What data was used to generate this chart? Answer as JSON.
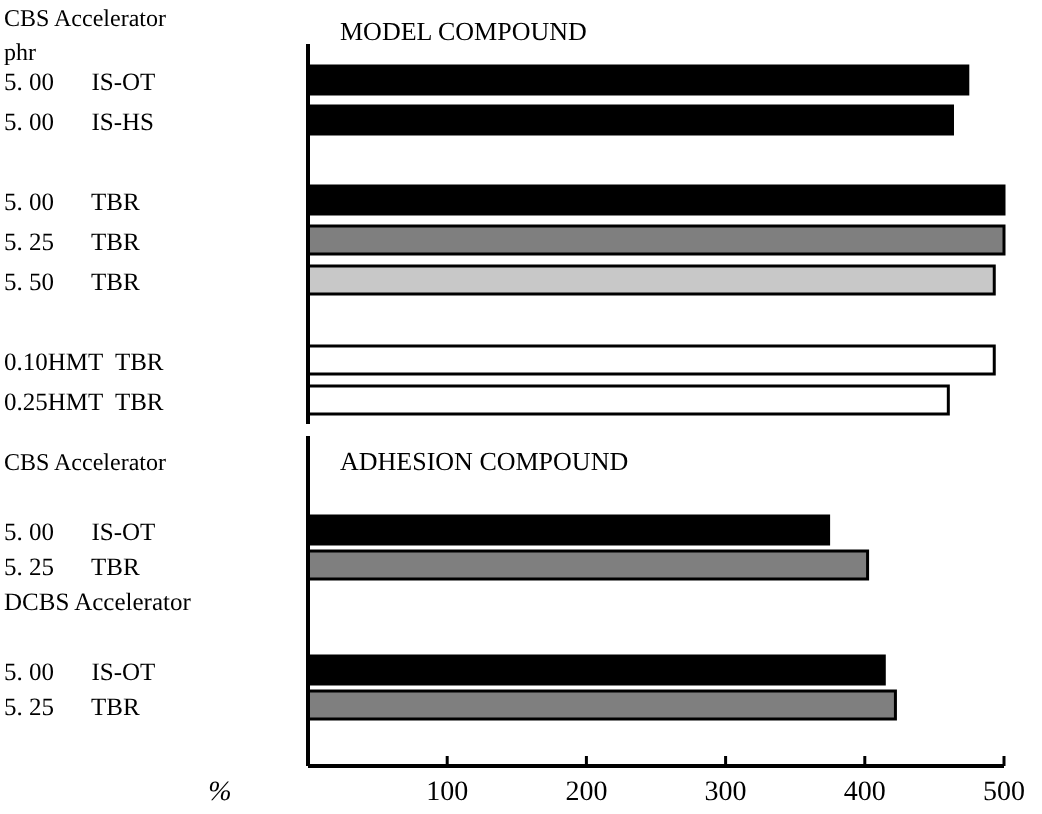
{
  "chart_data": [
    {
      "type": "bar",
      "orientation": "horizontal",
      "title": "MODEL COMPOUND",
      "annotations": [
        "CBS Accelerator",
        "phr"
      ],
      "categories": [
        "5. 00      IS-OT",
        "5. 00      IS-HS",
        null,
        "5. 00      TBR",
        "5. 25      TBR",
        "5. 50      TBR",
        null,
        "0.10HMT  TBR",
        "0.25HMT  TBR"
      ],
      "values": [
        474,
        463,
        null,
        500,
        500,
        493,
        null,
        493,
        460
      ],
      "colors": [
        "#000000",
        "#000000",
        null,
        "#000000",
        "#7f7f7f",
        "#c8c8c8",
        null,
        "#ffffff",
        "#ffffff"
      ],
      "xlim": [
        0,
        500
      ],
      "tick_labels": "y",
      "grid": false
    },
    {
      "type": "bar",
      "orientation": "horizontal",
      "title": "ADHESION COMPOUND",
      "annotations": [
        "CBS Accelerator"
      ],
      "xlabel": "%",
      "categories": [
        "5. 00      IS-OT",
        "5. 25      TBR",
        "DCBS Accelerator",
        null,
        "5. 00      IS-OT",
        "5. 25      TBR"
      ],
      "values": [
        374,
        402,
        null,
        null,
        414,
        422
      ],
      "colors": [
        "#000000",
        "#7f7f7f",
        null,
        null,
        "#000000",
        "#7f7f7f"
      ],
      "xlim": [
        0,
        500
      ],
      "xticks": [
        100,
        200,
        300,
        400,
        500
      ],
      "grid": false
    }
  ]
}
